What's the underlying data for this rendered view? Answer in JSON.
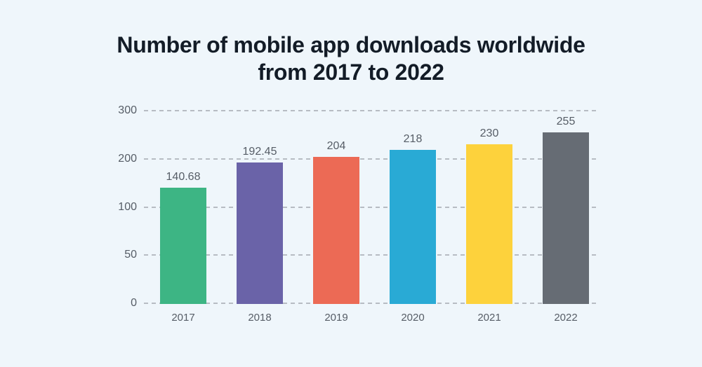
{
  "page": {
    "background_color": "#eff6fb"
  },
  "title": {
    "line1": "Number of mobile app downloads worldwide",
    "line2": "from 2017 to 2022",
    "color": "#131c27"
  },
  "chart_data": {
    "type": "bar",
    "title": "Number of mobile app downloads worldwide from 2017 to 2022",
    "categories": [
      "2017",
      "2018",
      "2019",
      "2020",
      "2021",
      "2022"
    ],
    "values": [
      140.68,
      192.45,
      204,
      218,
      230,
      255
    ],
    "value_labels": [
      "140.68",
      "192.45",
      "204",
      "218",
      "230",
      "255"
    ],
    "bar_colors": [
      "#3db584",
      "#6a63a8",
      "#ec6a55",
      "#29aad5",
      "#fdd23c",
      "#666c74"
    ],
    "yticks": [
      0,
      50,
      100,
      200,
      300
    ],
    "ytick_labels": [
      "0",
      "50",
      "100",
      "200",
      "300"
    ],
    "xlabel": "",
    "ylabel": "",
    "legend": "none",
    "grid": "horizontal-dashed",
    "axis_note": "tick rows are equally spaced even though values 0/50/100/200/300 are non-linear",
    "label_color": "#565d66",
    "grid_color": "#b7bcc3"
  }
}
